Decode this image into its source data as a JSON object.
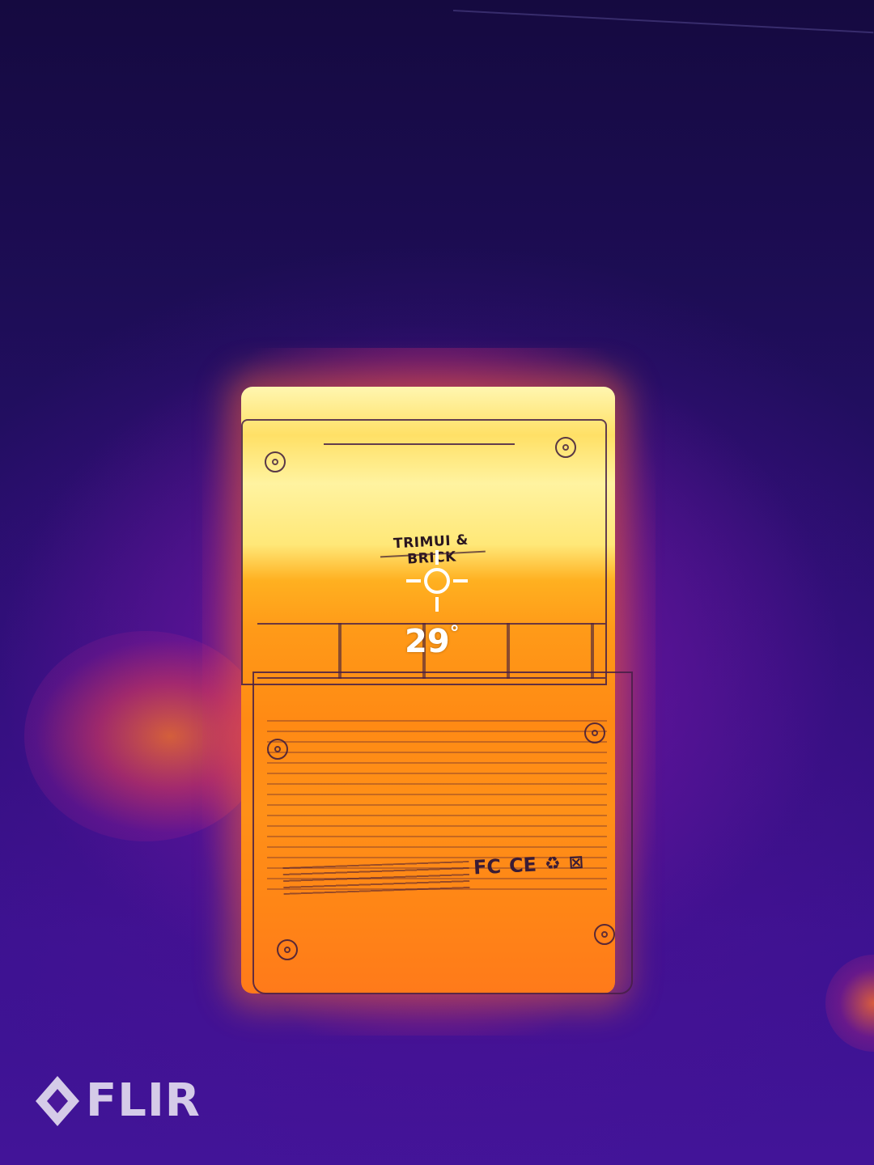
{
  "reading": {
    "value": "29",
    "unit": "°"
  },
  "device": {
    "brand_text": "TRIMUI & BRICK",
    "cert_marks": [
      "FC",
      "CE",
      "♻",
      "⊠"
    ]
  },
  "watermark": {
    "logo_text": "FLIR"
  },
  "palette": {
    "hot": "#fff3a0",
    "warm": "#ff8a14",
    "cool": "#2a0f74",
    "cold": "#150a40"
  },
  "icons": [
    "spot-meter-crosshair-icon",
    "flir-diamond-icon"
  ]
}
